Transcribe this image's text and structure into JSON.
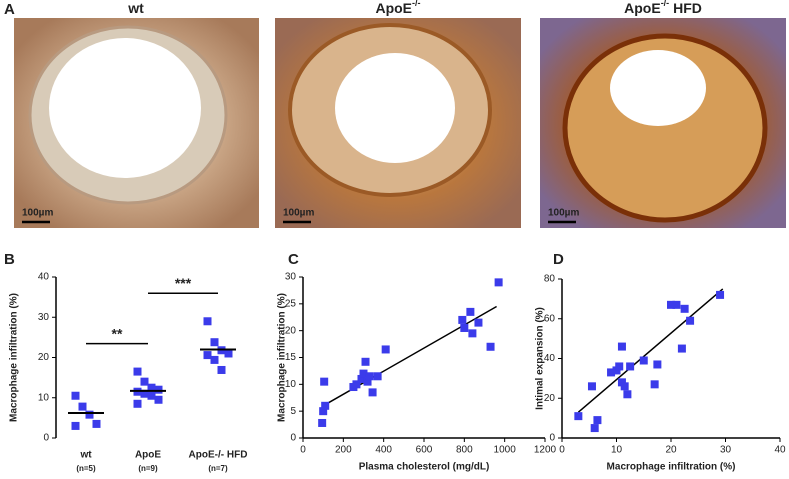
{
  "panel_labels": [
    "A",
    "B",
    "C",
    "D"
  ],
  "images": [
    {
      "title": {
        "base": "wt"
      },
      "scale_bar": "100µm"
    },
    {
      "title": {
        "base": "ApoE",
        "sup": "-/-"
      },
      "scale_bar": "100µm"
    },
    {
      "title": {
        "base": "ApoE",
        "sup": "-/-",
        "rest": " HFD"
      },
      "scale_bar": "100µm"
    }
  ],
  "chart_data": [
    {
      "type": "strip",
      "ylabel": "Macrophage infiltration (%)",
      "categories": [
        "wt",
        "ApoE",
        "ApoE-/- HFD"
      ],
      "n_labels": [
        "(n=5)",
        "(n=9)",
        "(n=7)"
      ],
      "values": [
        [
          10.5,
          7.8,
          5.8,
          3.5,
          3.0
        ],
        [
          16.5,
          14,
          12.5,
          12,
          11.5,
          11,
          10.5,
          9.5,
          8.5
        ],
        [
          29,
          23.8,
          21.8,
          21,
          20.6,
          19.4,
          16.9
        ]
      ],
      "means": [
        6.2,
        11.7,
        22
      ],
      "significance": [
        {
          "between": [
            0,
            1
          ],
          "label": "**"
        },
        {
          "between": [
            1,
            2
          ],
          "label": "***"
        }
      ],
      "color": "#3b3bea",
      "ylim": [
        0,
        40
      ],
      "yticks": [
        0,
        10,
        20,
        30,
        40
      ]
    },
    {
      "type": "scatter",
      "xlabel": "Plasma cholesterol (mg/dL)",
      "ylabel": "Macrophage infiltration (%)",
      "x": [
        95,
        100,
        110,
        105,
        250,
        265,
        290,
        300,
        310,
        320,
        330,
        345,
        370,
        410,
        790,
        800,
        830,
        840,
        870,
        930,
        970
      ],
      "y": [
        2.8,
        5.0,
        6.0,
        10.5,
        9.5,
        10.0,
        11.0,
        12.0,
        14.2,
        10.5,
        11.5,
        8.5,
        11.5,
        16.5,
        22,
        20.5,
        23.5,
        19.5,
        21.5,
        17,
        29
      ],
      "fit": {
        "x": [
          100,
          960
        ],
        "y": [
          6,
          24.5
        ]
      },
      "color": "#3b3bea",
      "xlim": [
        0,
        1200
      ],
      "xticks": [
        0,
        200,
        400,
        600,
        800,
        1000,
        1200
      ],
      "ylim": [
        0,
        30
      ],
      "yticks": [
        0,
        5,
        10,
        15,
        20,
        25,
        30
      ]
    },
    {
      "type": "scatter",
      "xlabel": "Macrophage infiltration (%)",
      "ylabel": "Intimal expansion (%)",
      "x": [
        3,
        5.5,
        6,
        6.5,
        9,
        10,
        10.5,
        11,
        11,
        11.5,
        12,
        12.5,
        15,
        17,
        17.5,
        20,
        21,
        22,
        22.5,
        23.5,
        29
      ],
      "y": [
        11,
        26,
        5,
        9,
        33,
        34,
        36,
        46,
        28,
        26,
        22,
        36,
        39,
        27,
        37,
        67,
        67,
        45,
        65,
        59,
        72
      ],
      "fit": {
        "x": [
          3,
          29.5
        ],
        "y": [
          13,
          75
        ]
      },
      "color": "#3b3bea",
      "xlim": [
        0,
        40
      ],
      "xticks": [
        0,
        10,
        20,
        30,
        40
      ],
      "ylim": [
        0,
        80
      ],
      "yticks": [
        0,
        20,
        40,
        60,
        80
      ]
    }
  ]
}
